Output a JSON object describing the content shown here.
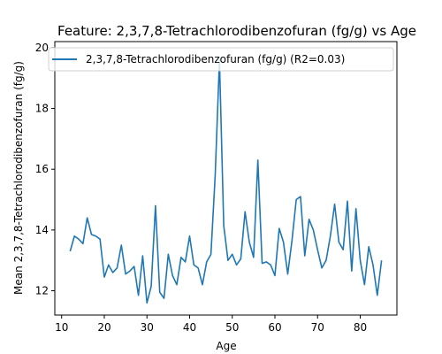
{
  "chart_data": {
    "type": "line",
    "title": "Feature: 2,3,7,8-Tetrachlorodibenzofuran (fg/g) vs Age",
    "xlabel": "Age",
    "ylabel": "Mean 2,3,7,8-Tetrachlorodibenzofuran (fg/g)",
    "xlim": [
      8.4,
      88.6
    ],
    "ylim": [
      11.2,
      20.2
    ],
    "xticks": [
      10,
      20,
      30,
      40,
      50,
      60,
      70,
      80
    ],
    "yticks": [
      12,
      14,
      16,
      18,
      20
    ],
    "grid": false,
    "legend_position": "top-left",
    "series": [
      {
        "name": "2,3,7,8-Tetrachlorodibenzofuran (fg/g) (R2=0.03)",
        "color": "#1f77b4",
        "x": [
          12,
          13,
          14,
          15,
          16,
          17,
          18,
          19,
          20,
          21,
          22,
          23,
          24,
          25,
          26,
          27,
          28,
          29,
          30,
          31,
          32,
          33,
          34,
          35,
          36,
          37,
          38,
          39,
          40,
          41,
          42,
          43,
          44,
          45,
          46,
          47,
          48,
          49,
          50,
          51,
          52,
          53,
          54,
          55,
          56,
          57,
          58,
          59,
          60,
          61,
          62,
          63,
          64,
          65,
          66,
          67,
          68,
          69,
          70,
          71,
          72,
          73,
          74,
          75,
          76,
          77,
          78,
          79,
          80,
          81,
          82,
          83,
          84,
          85
        ],
        "y": [
          13.3,
          13.8,
          13.7,
          13.55,
          14.4,
          13.85,
          13.8,
          13.7,
          12.45,
          12.85,
          12.6,
          12.75,
          13.5,
          12.55,
          12.65,
          12.8,
          11.85,
          13.15,
          11.6,
          12.15,
          14.8,
          11.95,
          11.75,
          13.2,
          12.5,
          12.2,
          13.1,
          12.95,
          13.8,
          12.85,
          12.75,
          12.2,
          12.95,
          13.2,
          15.8,
          19.6,
          14.15,
          13.0,
          13.2,
          12.85,
          13.05,
          14.6,
          13.6,
          13.1,
          16.3,
          12.9,
          12.95,
          12.85,
          12.5,
          14.05,
          13.6,
          12.55,
          13.65,
          15.0,
          15.1,
          13.15,
          14.35,
          14.0,
          13.35,
          12.75,
          13.0,
          13.8,
          14.85,
          13.6,
          13.35,
          14.95,
          12.65,
          14.7,
          13.0,
          12.2,
          13.45,
          12.85,
          11.85,
          13.0
        ]
      }
    ]
  }
}
